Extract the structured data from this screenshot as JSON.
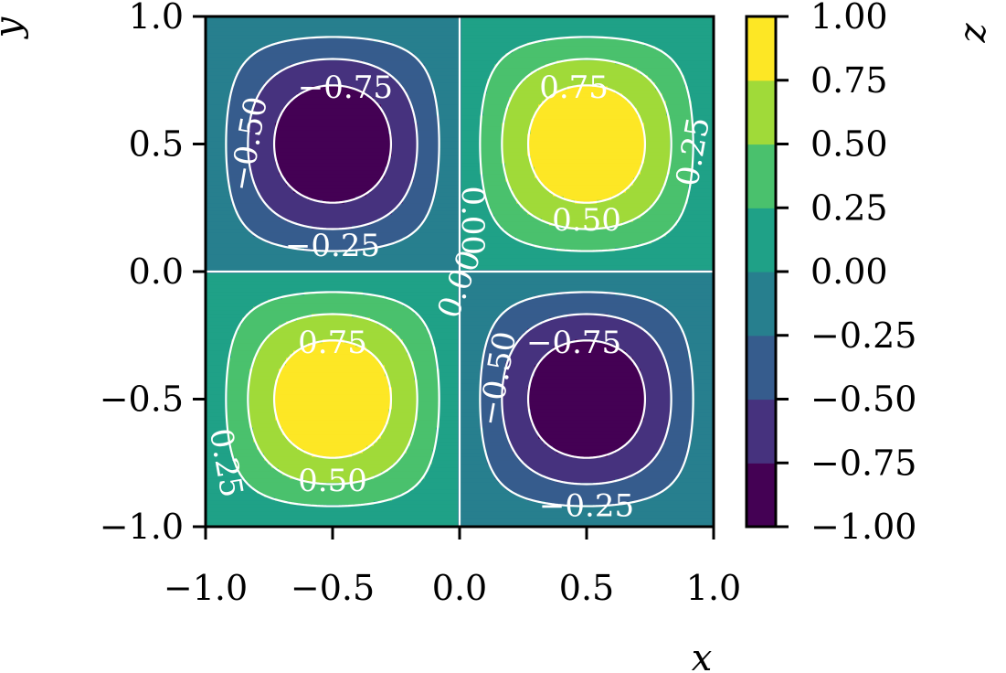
{
  "chart_data": {
    "type": "contour",
    "function": "sin(pi*x)*sin(pi*y)",
    "xlabel": "x",
    "ylabel": "y",
    "colorbar_label": "z",
    "xlim": [
      -1.0,
      1.0
    ],
    "ylim": [
      -1.0,
      1.0
    ],
    "x_ticks": [
      -1.0,
      -0.5,
      0.0,
      0.5,
      1.0
    ],
    "x_tick_labels": [
      "−1.0",
      "−0.5",
      "0.0",
      "0.5",
      "1.0"
    ],
    "y_ticks": [
      -1.0,
      -0.5,
      0.0,
      0.5,
      1.0
    ],
    "y_tick_labels": [
      "−1.0",
      "−0.5",
      "0.0",
      "0.5",
      "1.0"
    ],
    "colormap": "viridis",
    "levels": [
      -1.0,
      -0.75,
      -0.5,
      -0.25,
      0.0,
      0.25,
      0.5,
      0.75,
      1.0
    ],
    "level_colors": [
      "#440154",
      "#46327e",
      "#365c8d",
      "#277f8e",
      "#1fa187",
      "#4ac16d",
      "#a0da39",
      "#fde725"
    ],
    "colorbar_ticks": [
      1.0,
      0.75,
      0.5,
      0.25,
      0.0,
      -0.25,
      -0.5,
      -0.75,
      -1.0
    ],
    "colorbar_tick_labels": [
      "1.00",
      "0.75",
      "0.50",
      "0.25",
      "0.00",
      "−0.25",
      "−0.50",
      "−0.75",
      "−1.00"
    ],
    "contour_lines": [
      -0.75,
      -0.5,
      -0.25,
      0.0,
      0.25,
      0.5,
      0.75
    ],
    "contour_line_color": "#ffffff",
    "negative_linestyle": "dashed",
    "contour_labels": [
      {
        "text": "−0.75",
        "x": -0.45,
        "y": 0.72,
        "angle": 0
      },
      {
        "text": "−0.50",
        "x": -0.83,
        "y": 0.5,
        "angle": -80
      },
      {
        "text": "−0.25",
        "x": -0.5,
        "y": 0.1,
        "angle": 0
      },
      {
        "text": "0.75",
        "x": 0.45,
        "y": 0.72,
        "angle": 0
      },
      {
        "text": "0.50",
        "x": 0.5,
        "y": 0.2,
        "angle": 0
      },
      {
        "text": "0.25",
        "x": 0.92,
        "y": 0.47,
        "angle": -80
      },
      {
        "text": "0.00",
        "x": 0.05,
        "y": 0.2,
        "angle": 90
      },
      {
        "text": "0.00",
        "x": 0.0,
        "y": -0.05,
        "angle": -70
      },
      {
        "text": "0.75",
        "x": -0.5,
        "y": -0.28,
        "angle": 0
      },
      {
        "text": "0.25",
        "x": -0.92,
        "y": -0.75,
        "angle": 80
      },
      {
        "text": "0.50",
        "x": -0.5,
        "y": -0.82,
        "angle": 0
      },
      {
        "text": "−0.75",
        "x": 0.45,
        "y": -0.28,
        "angle": 0
      },
      {
        "text": "−0.50",
        "x": 0.15,
        "y": -0.42,
        "angle": -80
      },
      {
        "text": "−0.25",
        "x": 0.5,
        "y": -0.92,
        "angle": 0
      }
    ]
  }
}
